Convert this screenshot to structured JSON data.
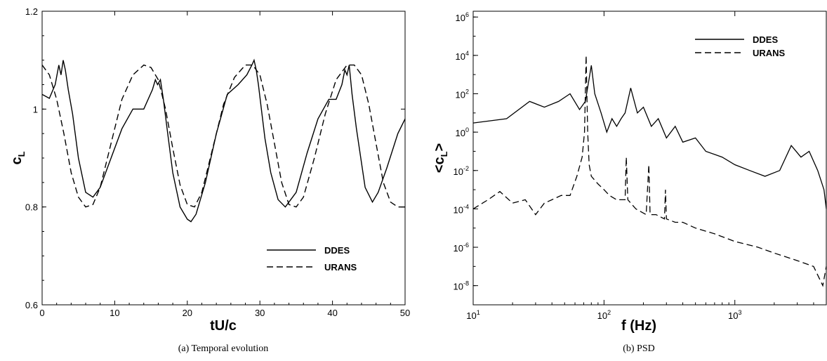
{
  "chart_data": [
    {
      "type": "line",
      "caption": "(a)  Temporal evolution",
      "xlabel": "tU/c",
      "ylabel_main": "c",
      "ylabel_sub": "L",
      "xlim": [
        0,
        50
      ],
      "ylim": [
        0.6,
        1.2
      ],
      "xticks": [
        0,
        10,
        20,
        30,
        40,
        50
      ],
      "yticks": [
        0.6,
        0.8,
        1,
        1.2
      ],
      "xtick_labels": [
        "0",
        "10",
        "20",
        "30",
        "40",
        "50"
      ],
      "ytick_labels": [
        "0.6",
        "0.8",
        "1",
        "1.2"
      ],
      "legend_position": "bottom-right",
      "series": [
        {
          "name": "DDES",
          "style": "solid",
          "x": [
            0,
            1,
            1.8,
            2.3,
            2.6,
            2.9,
            3.2,
            3.6,
            4.2,
            5,
            6,
            7,
            8,
            9.5,
            11,
            12.5,
            14,
            15.2,
            15.6,
            15.9,
            16.3,
            16.7,
            17.3,
            18,
            19,
            20,
            20.5,
            21.2,
            22.5,
            24,
            25.5,
            27,
            28.2,
            28.9,
            29.2,
            29.5,
            29.8,
            30.2,
            30.7,
            31.5,
            32.5,
            33.5,
            35,
            36.5,
            38,
            39.5,
            40.5,
            41.3,
            41.7,
            42,
            42.3,
            42.7,
            43.3,
            44.5,
            45.5,
            46.3,
            47.5,
            49,
            50
          ],
          "y": [
            1.03,
            1.022,
            1.05,
            1.09,
            1.07,
            1.1,
            1.08,
            1.04,
            0.99,
            0.9,
            0.83,
            0.82,
            0.84,
            0.9,
            0.96,
            1.0,
            1.0,
            1.04,
            1.06,
            1.05,
            1.06,
            1.02,
            0.95,
            0.87,
            0.8,
            0.775,
            0.77,
            0.785,
            0.85,
            0.95,
            1.03,
            1.05,
            1.07,
            1.09,
            1.1,
            1.08,
            1.05,
            1.0,
            0.94,
            0.87,
            0.815,
            0.8,
            0.83,
            0.91,
            0.98,
            1.02,
            1.02,
            1.05,
            1.08,
            1.07,
            1.09,
            1.03,
            0.96,
            0.84,
            0.81,
            0.83,
            0.88,
            0.95,
            0.98
          ]
        },
        {
          "name": "URANS",
          "style": "dashed",
          "x": [
            0,
            1,
            2,
            3,
            4,
            5,
            6,
            7,
            8,
            9.5,
            11,
            12.5,
            14,
            15,
            16,
            17,
            18,
            19,
            20,
            21,
            22,
            23.5,
            25,
            26.5,
            28,
            29,
            30,
            31,
            32,
            33,
            34,
            35,
            36,
            37.5,
            39,
            40.5,
            42,
            43,
            44,
            45,
            46,
            47,
            48,
            49,
            50
          ],
          "y": [
            1.09,
            1.07,
            1.02,
            0.95,
            0.87,
            0.82,
            0.8,
            0.805,
            0.84,
            0.93,
            1.02,
            1.07,
            1.09,
            1.085,
            1.06,
            1.0,
            0.92,
            0.845,
            0.805,
            0.8,
            0.83,
            0.92,
            1.01,
            1.065,
            1.09,
            1.09,
            1.07,
            1.01,
            0.93,
            0.85,
            0.805,
            0.8,
            0.82,
            0.9,
            0.99,
            1.06,
            1.09,
            1.09,
            1.07,
            1.01,
            0.93,
            0.85,
            0.81,
            0.8,
            0.8
          ]
        }
      ]
    },
    {
      "type": "line",
      "caption": "(b)  PSD",
      "xlabel": "f (Hz)",
      "ylabel_main": "<c",
      "ylabel_sub": "L",
      "ylabel_end": ">",
      "xscale": "log",
      "yscale": "log",
      "xlim": [
        10,
        5000
      ],
      "ylim": [
        1e-09,
        2000000.0
      ],
      "xticks": [
        10,
        100,
        1000
      ],
      "xtick_base": "10",
      "xtick_exps": [
        "1",
        "2",
        "3"
      ],
      "yticks": [
        1e-08,
        1e-06,
        0.0001,
        0.01,
        1,
        100,
        10000.0,
        1000000.0
      ],
      "ytick_base": "10",
      "ytick_exps": [
        "-8",
        "-6",
        "-4",
        "-2",
        "0",
        "2",
        "4",
        "6"
      ],
      "legend_position": "top-right",
      "series": [
        {
          "name": "DDES",
          "style": "solid",
          "x": [
            10,
            18,
            27,
            35,
            45,
            55,
            65,
            72,
            80,
            85,
            95,
            105,
            115,
            125,
            135,
            145,
            160,
            180,
            200,
            230,
            260,
            300,
            350,
            400,
            500,
            600,
            800,
            1000,
            1300,
            1700,
            2200,
            2700,
            3200,
            3700,
            4300,
            4800,
            5000
          ],
          "y": [
            3,
            5,
            40,
            20,
            40,
            100,
            15,
            40,
            3000,
            100,
            10,
            1,
            5,
            2,
            5,
            10,
            200,
            10,
            20,
            2,
            5,
            0.5,
            2,
            0.3,
            0.5,
            0.1,
            0.05,
            0.02,
            0.01,
            0.005,
            0.01,
            0.2,
            0.05,
            0.1,
            0.01,
            0.001,
            0.0001
          ]
        },
        {
          "name": "URANS",
          "style": "dashed",
          "x": [
            10,
            13,
            16,
            20,
            25,
            30,
            35,
            40,
            47,
            55,
            62,
            68,
            71,
            73,
            75,
            77,
            80,
            90,
            100,
            110,
            125,
            145,
            148,
            152,
            175,
            210,
            220,
            225,
            250,
            290,
            295,
            300,
            350,
            400,
            500,
            700,
            1000,
            1500,
            2000,
            3000,
            4000,
            4700,
            5000
          ],
          "y": [
            0.0001,
            0.0003,
            0.0008,
            0.0002,
            0.0003,
            5e-05,
            0.0002,
            0.0003,
            0.0005,
            0.0005,
            0.005,
            0.05,
            1,
            10000,
            1,
            0.02,
            0.005,
            0.002,
            0.001,
            0.0005,
            0.0003,
            0.0003,
            0.05,
            0.0003,
            0.0001,
            5e-05,
            0.02,
            5e-05,
            5e-05,
            3e-05,
            0.001,
            3e-05,
            2e-05,
            2e-05,
            1e-05,
            5e-06,
            2e-06,
            1e-06,
            5e-07,
            2e-07,
            1e-07,
            1e-08,
            1e-07
          ]
        }
      ]
    }
  ]
}
